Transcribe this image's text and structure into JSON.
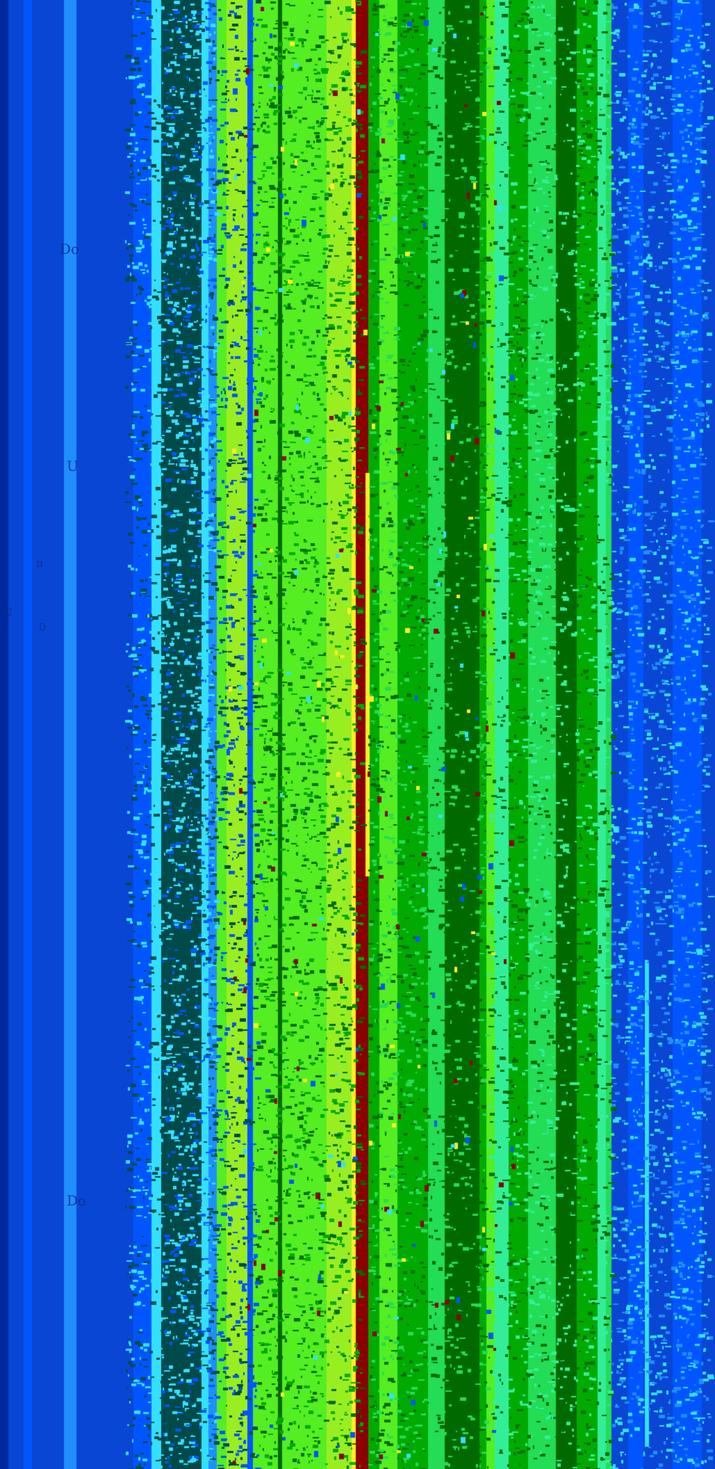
{
  "image": {
    "description_tag": "glitch-texture",
    "colors": {
      "navy": "#00299e",
      "royal_blue": "#0a46d4",
      "bright_blue": "#0055ff",
      "sky_blue": "#1f8fff",
      "cyan": "#33e0ff",
      "teal_dark": "#004a4a",
      "lime": "#55ee22",
      "yellow_green": "#99ee22",
      "dark_red": "#8b0000",
      "yellow": "#ffee22",
      "green": "#00aa00",
      "dark_green": "#006a00",
      "mint": "#33ee99",
      "light_green": "#22dd55"
    }
  },
  "visible_text_fragments": {
    "frag_1": "Do",
    "frag_2": "U",
    "frag_3": "n",
    "frag_4": "2",
    "frag_5": "0",
    "frag_6": "Do"
  }
}
